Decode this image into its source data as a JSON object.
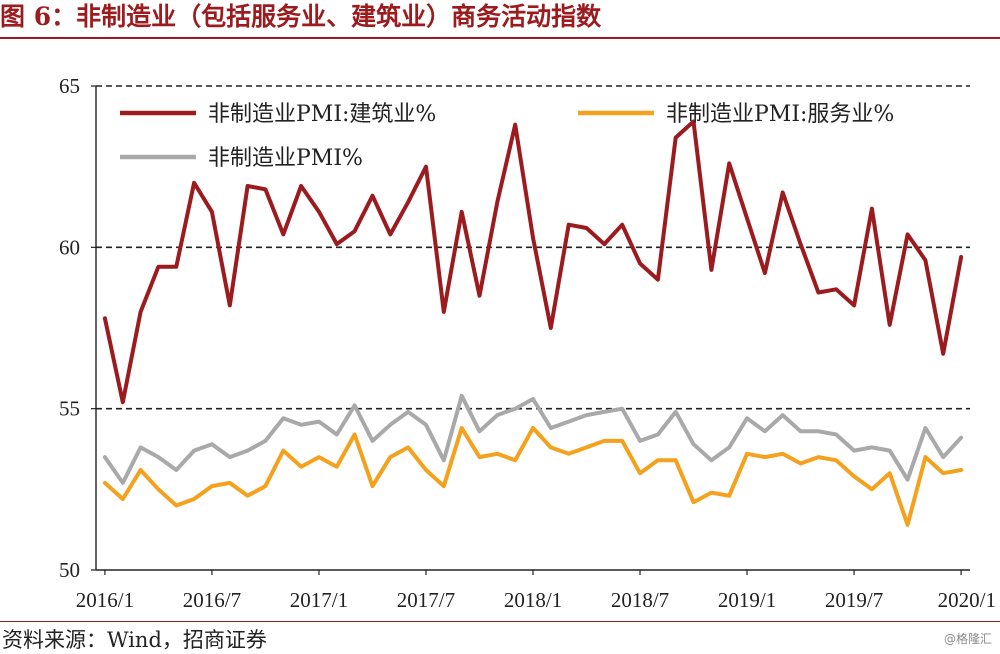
{
  "title": "图 6：非制造业（包括服务业、建筑业）商务活动指数",
  "source": "资料来源：Wind，招商证券",
  "watermark": "@格隆汇",
  "chart_data": {
    "type": "line",
    "x": [
      "2016/1",
      "2016/2",
      "2016/3",
      "2016/4",
      "2016/5",
      "2016/6",
      "2016/7",
      "2016/8",
      "2016/9",
      "2016/10",
      "2016/11",
      "2016/12",
      "2017/1",
      "2017/2",
      "2017/3",
      "2017/4",
      "2017/5",
      "2017/6",
      "2017/7",
      "2017/8",
      "2017/9",
      "2017/10",
      "2017/11",
      "2017/12",
      "2018/1",
      "2018/2",
      "2018/3",
      "2018/4",
      "2018/5",
      "2018/6",
      "2018/7",
      "2018/8",
      "2018/9",
      "2018/10",
      "2018/11",
      "2018/12",
      "2019/1",
      "2019/2",
      "2019/3",
      "2019/4",
      "2019/5",
      "2019/6",
      "2019/7",
      "2019/8",
      "2019/9",
      "2019/10",
      "2019/11",
      "2019/12",
      "2020/1"
    ],
    "xtick_labels": [
      "2016/1",
      "2016/7",
      "2017/1",
      "2017/7",
      "2018/1",
      "2018/7",
      "2019/1",
      "2019/7",
      "2020/1"
    ],
    "ylim": [
      50,
      65
    ],
    "yticks": [
      50,
      55,
      60,
      65
    ],
    "grid": "dashed horizontal at 55, 60, 65",
    "legend_position": "top",
    "series": [
      {
        "name": "非制造业PMI:建筑业%",
        "color": "#9b1b1e",
        "values": [
          57.8,
          55.2,
          58.0,
          59.4,
          59.4,
          62.0,
          61.1,
          58.2,
          61.9,
          61.8,
          60.4,
          61.9,
          61.1,
          60.1,
          60.5,
          61.6,
          60.4,
          61.4,
          62.5,
          58.0,
          61.1,
          58.5,
          61.4,
          63.8,
          60.3,
          57.5,
          60.7,
          60.6,
          60.1,
          60.7,
          59.5,
          59.0,
          63.4,
          63.9,
          59.3,
          62.6,
          60.9,
          59.2,
          61.7,
          60.1,
          58.6,
          58.7,
          58.2,
          61.2,
          57.6,
          60.4,
          59.6,
          56.7,
          59.7
        ]
      },
      {
        "name": "非制造业PMI:服务业%",
        "color": "#f4a11d",
        "values": [
          52.7,
          52.2,
          53.1,
          52.5,
          52.0,
          52.2,
          52.6,
          52.7,
          52.3,
          52.6,
          53.7,
          53.2,
          53.5,
          53.2,
          54.2,
          52.6,
          53.5,
          53.8,
          53.1,
          52.6,
          54.4,
          53.5,
          53.6,
          53.4,
          54.4,
          53.8,
          53.6,
          53.8,
          54.0,
          54.0,
          53.0,
          53.4,
          53.4,
          52.1,
          52.4,
          52.3,
          53.6,
          53.5,
          53.6,
          53.3,
          53.5,
          53.4,
          52.9,
          52.5,
          53.0,
          51.4,
          53.5,
          53.0,
          53.1
        ]
      },
      {
        "name": "非制造业PMI%",
        "color": "#a9a9a9",
        "values": [
          53.5,
          52.7,
          53.8,
          53.5,
          53.1,
          53.7,
          53.9,
          53.5,
          53.7,
          54.0,
          54.7,
          54.5,
          54.6,
          54.2,
          55.1,
          54.0,
          54.5,
          54.9,
          54.5,
          53.4,
          55.4,
          54.3,
          54.8,
          55.0,
          55.3,
          54.4,
          54.6,
          54.8,
          54.9,
          55.0,
          54.0,
          54.2,
          54.9,
          53.9,
          53.4,
          53.8,
          54.7,
          54.3,
          54.8,
          54.3,
          54.3,
          54.2,
          53.7,
          53.8,
          53.7,
          52.8,
          54.4,
          53.5,
          54.1
        ]
      }
    ]
  }
}
